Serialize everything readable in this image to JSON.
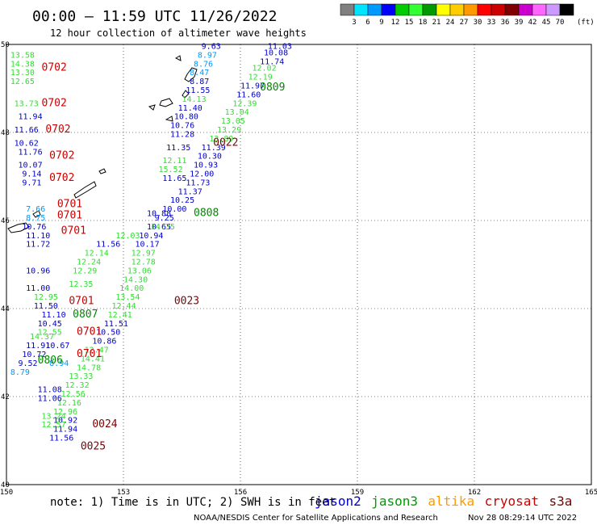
{
  "header": {
    "title": "00:00 – 11:59 UTC 11/26/2022",
    "subtitle": "12 hour collection of altimeter wave heights"
  },
  "color_scale": {
    "colors": [
      "#808080",
      "#00e5ff",
      "#0099ff",
      "#0000ff",
      "#00cc00",
      "#33ff33",
      "#009900",
      "#ffff00",
      "#ffcc00",
      "#ff9900",
      "#ff0000",
      "#cc0000",
      "#800000",
      "#cc00cc",
      "#ff66ff",
      "#cc99ff",
      "#000000"
    ],
    "labels": [
      "3",
      "6",
      "9",
      "12",
      "15",
      "18",
      "21",
      "24",
      "27",
      "30",
      "33",
      "36",
      "39",
      "42",
      "45",
      "70"
    ],
    "unit": "(ft)"
  },
  "footer": {
    "note": "note:  1) Time is in UTC; 2) SWH is in feet",
    "satellites": [
      {
        "name": "jason2",
        "color": "#0000cc"
      },
      {
        "name": "jason3",
        "color": "#009900"
      },
      {
        "name": "altika",
        "color": "#ff9900"
      },
      {
        "name": "cryosat",
        "color": "#cc0000"
      },
      {
        "name": "s3a",
        "color": "#800000"
      }
    ],
    "credit": "NOAA/NESDIS Center for Satellite Applications and Research",
    "timestamp": "Nov 28 08:29:14 UTC 2022"
  },
  "chart_data": {
    "type": "scatter",
    "xlim": [
      150,
      165
    ],
    "ylim": [
      40,
      50
    ],
    "x_ticks": [
      "150",
      "153",
      "156",
      "159",
      "162",
      "165"
    ],
    "y_ticks": [
      "40",
      "42",
      "44",
      "46",
      "48",
      "50"
    ],
    "grid": true,
    "points": [
      {
        "x": 156.7,
        "y": 49.9,
        "v": "11.03",
        "c": "#0000cc"
      },
      {
        "x": 156.6,
        "y": 49.75,
        "v": "10.08",
        "c": "#0000cc"
      },
      {
        "x": 156.5,
        "y": 49.55,
        "v": "11.74",
        "c": "#0000cc"
      },
      {
        "x": 156.3,
        "y": 49.4,
        "v": "12.02",
        "c": "#33dd33"
      },
      {
        "x": 156.2,
        "y": 49.2,
        "v": "12.19",
        "c": "#33dd33"
      },
      {
        "x": 156.0,
        "y": 49.0,
        "v": "11.97",
        "c": "#0000cc"
      },
      {
        "x": 155.9,
        "y": 48.8,
        "v": "11.60",
        "c": "#0000cc"
      },
      {
        "x": 155.8,
        "y": 48.6,
        "v": "12.39",
        "c": "#33dd33"
      },
      {
        "x": 155.6,
        "y": 48.4,
        "v": "13.04",
        "c": "#33dd33"
      },
      {
        "x": 155.5,
        "y": 48.2,
        "v": "13.05",
        "c": "#33dd33"
      },
      {
        "x": 155.4,
        "y": 48.0,
        "v": "13.29",
        "c": "#33dd33"
      },
      {
        "x": 155.2,
        "y": 47.8,
        "v": "13.89",
        "c": "#33dd33"
      },
      {
        "x": 155.0,
        "y": 47.6,
        "v": "11.39",
        "c": "#0000cc"
      },
      {
        "x": 154.9,
        "y": 47.4,
        "v": "10.30",
        "c": "#0000cc"
      },
      {
        "x": 154.8,
        "y": 47.2,
        "v": "10.93",
        "c": "#0000cc"
      },
      {
        "x": 154.7,
        "y": 47.0,
        "v": "12.00",
        "c": "#0000cc"
      },
      {
        "x": 154.6,
        "y": 46.8,
        "v": "11.73",
        "c": "#0000cc"
      },
      {
        "x": 154.4,
        "y": 46.6,
        "v": "11.37",
        "c": "#0000cc"
      },
      {
        "x": 154.2,
        "y": 46.4,
        "v": "10.25",
        "c": "#0000cc"
      },
      {
        "x": 154.0,
        "y": 46.2,
        "v": "10.00",
        "c": "#0000cc"
      },
      {
        "x": 153.8,
        "y": 46.0,
        "v": "9.25",
        "c": "#0000cc"
      },
      {
        "x": 153.6,
        "y": 45.8,
        "v": "10.65",
        "c": "#0000cc"
      },
      {
        "x": 153.4,
        "y": 45.6,
        "v": "10.94",
        "c": "#0000cc"
      },
      {
        "x": 153.3,
        "y": 45.4,
        "v": "10.17",
        "c": "#0000cc"
      },
      {
        "x": 153.2,
        "y": 45.2,
        "v": "12.97",
        "c": "#33dd33"
      },
      {
        "x": 153.2,
        "y": 45.0,
        "v": "12.78",
        "c": "#33dd33"
      },
      {
        "x": 153.1,
        "y": 44.8,
        "v": "13.06",
        "c": "#33dd33"
      },
      {
        "x": 153.0,
        "y": 44.6,
        "v": "14.30",
        "c": "#33dd33"
      },
      {
        "x": 152.9,
        "y": 44.4,
        "v": "14.00",
        "c": "#33dd33"
      },
      {
        "x": 152.8,
        "y": 44.2,
        "v": "13.54",
        "c": "#33dd33"
      },
      {
        "x": 152.7,
        "y": 44.0,
        "v": "12.44",
        "c": "#33dd33"
      },
      {
        "x": 152.6,
        "y": 43.8,
        "v": "12.41",
        "c": "#33dd33"
      },
      {
        "x": 152.5,
        "y": 43.6,
        "v": "11.51",
        "c": "#0000cc"
      },
      {
        "x": 152.3,
        "y": 43.4,
        "v": "10.50",
        "c": "#0000cc"
      },
      {
        "x": 152.2,
        "y": 43.2,
        "v": "10.86",
        "c": "#0000cc"
      },
      {
        "x": 152.0,
        "y": 43.0,
        "v": "12.47",
        "c": "#33dd33"
      },
      {
        "x": 151.9,
        "y": 42.8,
        "v": "14.41",
        "c": "#33dd33"
      },
      {
        "x": 151.8,
        "y": 42.6,
        "v": "14.78",
        "c": "#33dd33"
      },
      {
        "x": 151.6,
        "y": 42.4,
        "v": "13.33",
        "c": "#33dd33"
      },
      {
        "x": 151.5,
        "y": 42.2,
        "v": "12.32",
        "c": "#33dd33"
      },
      {
        "x": 151.4,
        "y": 42.0,
        "v": "12.56",
        "c": "#33dd33"
      },
      {
        "x": 151.3,
        "y": 41.8,
        "v": "12.16",
        "c": "#33dd33"
      },
      {
        "x": 151.2,
        "y": 41.6,
        "v": "12.96",
        "c": "#33dd33"
      },
      {
        "x": 151.2,
        "y": 41.4,
        "v": "10.92",
        "c": "#0000cc"
      },
      {
        "x": 151.2,
        "y": 41.2,
        "v": "11.94",
        "c": "#0000cc"
      },
      {
        "x": 151.1,
        "y": 41.0,
        "v": "11.56",
        "c": "#0000cc"
      },
      {
        "x": 155.0,
        "y": 49.9,
        "v": "9.63",
        "c": "#0000cc"
      },
      {
        "x": 154.9,
        "y": 49.7,
        "v": "8.97",
        "c": "#0099ff"
      },
      {
        "x": 154.8,
        "y": 49.5,
        "v": "8.76",
        "c": "#0099ff"
      },
      {
        "x": 154.7,
        "y": 49.3,
        "v": "8.47",
        "c": "#0099ff"
      },
      {
        "x": 154.7,
        "y": 49.1,
        "v": "8.87",
        "c": "#0000cc"
      },
      {
        "x": 154.6,
        "y": 48.9,
        "v": "11.55",
        "c": "#0000cc"
      },
      {
        "x": 154.5,
        "y": 48.7,
        "v": "14.13",
        "c": "#33dd33"
      },
      {
        "x": 154.4,
        "y": 48.5,
        "v": "11.40",
        "c": "#0000cc"
      },
      {
        "x": 154.3,
        "y": 48.3,
        "v": "10.80",
        "c": "#0000cc"
      },
      {
        "x": 154.2,
        "y": 48.1,
        "v": "10.76",
        "c": "#0000cc"
      },
      {
        "x": 154.2,
        "y": 47.9,
        "v": "11.28",
        "c": "#0000cc"
      },
      {
        "x": 154.1,
        "y": 47.6,
        "v": "11.35",
        "c": "#0000cc"
      },
      {
        "x": 154.0,
        "y": 47.3,
        "v": "12.11",
        "c": "#33dd33"
      },
      {
        "x": 153.9,
        "y": 47.1,
        "v": "15.52",
        "c": "#33dd33"
      },
      {
        "x": 154.0,
        "y": 46.9,
        "v": "11.65",
        "c": "#0000cc"
      },
      {
        "x": 153.6,
        "y": 46.1,
        "v": "10.88",
        "c": "#0000cc"
      },
      {
        "x": 153.7,
        "y": 45.8,
        "v": "14.35",
        "c": "#33dd33"
      },
      {
        "x": 152.8,
        "y": 45.6,
        "v": "12.03",
        "c": "#33dd33"
      },
      {
        "x": 152.3,
        "y": 45.4,
        "v": "11.56",
        "c": "#0000cc"
      },
      {
        "x": 152.0,
        "y": 45.2,
        "v": "12.14",
        "c": "#33dd33"
      },
      {
        "x": 151.8,
        "y": 45.0,
        "v": "12.24",
        "c": "#33dd33"
      },
      {
        "x": 151.7,
        "y": 44.8,
        "v": "12.29",
        "c": "#33dd33"
      },
      {
        "x": 151.6,
        "y": 44.5,
        "v": "12.35",
        "c": "#33dd33"
      },
      {
        "x": 150.7,
        "y": 44.2,
        "v": "12.95",
        "c": "#33dd33"
      },
      {
        "x": 150.7,
        "y": 44.0,
        "v": "11.50",
        "c": "#0000cc"
      },
      {
        "x": 150.9,
        "y": 43.8,
        "v": "11.10",
        "c": "#0000cc"
      },
      {
        "x": 150.8,
        "y": 43.6,
        "v": "10.45",
        "c": "#0000cc"
      },
      {
        "x": 150.5,
        "y": 43.1,
        "v": "11.91",
        "c": "#0000cc"
      },
      {
        "x": 151.0,
        "y": 43.1,
        "v": "10.67",
        "c": "#0000cc"
      },
      {
        "x": 150.4,
        "y": 42.9,
        "v": "10.72",
        "c": "#0000cc"
      },
      {
        "x": 150.3,
        "y": 42.7,
        "v": "9.52",
        "c": "#0000cc"
      },
      {
        "x": 150.1,
        "y": 42.5,
        "v": "8.79",
        "c": "#0099ff"
      },
      {
        "x": 151.1,
        "y": 42.7,
        "v": "8.94",
        "c": "#0099ff"
      },
      {
        "x": 150.8,
        "y": 42.1,
        "v": "11.08",
        "c": "#0000cc"
      },
      {
        "x": 150.8,
        "y": 41.9,
        "v": "11.06",
        "c": "#0000cc"
      },
      {
        "x": 150.9,
        "y": 41.5,
        "v": "13.24",
        "c": "#33dd33"
      },
      {
        "x": 150.9,
        "y": 41.3,
        "v": "12.57",
        "c": "#33dd33"
      },
      {
        "x": 150.8,
        "y": 43.4,
        "v": "12.55",
        "c": "#33dd33"
      },
      {
        "x": 150.6,
        "y": 43.3,
        "v": "14.37",
        "c": "#33dd33"
      },
      {
        "x": 150.1,
        "y": 49.7,
        "v": "13.58",
        "c": "#33dd33"
      },
      {
        "x": 150.1,
        "y": 49.5,
        "v": "14.38",
        "c": "#33dd33"
      },
      {
        "x": 150.1,
        "y": 49.3,
        "v": "13.30",
        "c": "#33dd33"
      },
      {
        "x": 150.1,
        "y": 49.1,
        "v": "12.65",
        "c": "#33dd33"
      },
      {
        "x": 150.2,
        "y": 48.6,
        "v": "13.73",
        "c": "#33dd33"
      },
      {
        "x": 150.3,
        "y": 48.3,
        "v": "11.94",
        "c": "#0000cc"
      },
      {
        "x": 150.2,
        "y": 48.0,
        "v": "11.66",
        "c": "#0000cc"
      },
      {
        "x": 150.2,
        "y": 47.7,
        "v": "10.62",
        "c": "#0000cc"
      },
      {
        "x": 150.3,
        "y": 47.5,
        "v": "11.76",
        "c": "#0000cc"
      },
      {
        "x": 150.3,
        "y": 47.2,
        "v": "10.07",
        "c": "#0000cc"
      },
      {
        "x": 150.4,
        "y": 47.0,
        "v": "9.14",
        "c": "#0000cc"
      },
      {
        "x": 150.4,
        "y": 46.8,
        "v": "9.71",
        "c": "#0000cc"
      },
      {
        "x": 150.5,
        "y": 46.2,
        "v": "7.66",
        "c": "#0099ff"
      },
      {
        "x": 150.5,
        "y": 46.0,
        "v": "8.75",
        "c": "#0099ff"
      },
      {
        "x": 150.4,
        "y": 45.8,
        "v": "10.76",
        "c": "#0000cc"
      },
      {
        "x": 150.5,
        "y": 45.6,
        "v": "11.10",
        "c": "#0000cc"
      },
      {
        "x": 150.5,
        "y": 45.4,
        "v": "11.72",
        "c": "#0000cc"
      },
      {
        "x": 150.5,
        "y": 44.8,
        "v": "10.96",
        "c": "#0000cc"
      },
      {
        "x": 150.5,
        "y": 44.4,
        "v": "11.00",
        "c": "#0000cc"
      }
    ],
    "tracks": [
      {
        "x": 150.9,
        "y": 49.4,
        "t": "0702",
        "c": "#cc0000"
      },
      {
        "x": 150.9,
        "y": 48.6,
        "t": "0702",
        "c": "#cc0000"
      },
      {
        "x": 151.0,
        "y": 48.0,
        "t": "0702",
        "c": "#cc0000"
      },
      {
        "x": 151.1,
        "y": 47.4,
        "t": "0702",
        "c": "#cc0000"
      },
      {
        "x": 151.1,
        "y": 46.9,
        "t": "0702",
        "c": "#cc0000"
      },
      {
        "x": 151.3,
        "y": 46.3,
        "t": "0701",
        "c": "#cc0000"
      },
      {
        "x": 151.3,
        "y": 46.05,
        "t": "0701",
        "c": "#cc0000"
      },
      {
        "x": 151.4,
        "y": 45.7,
        "t": "0701",
        "c": "#cc0000"
      },
      {
        "x": 151.6,
        "y": 44.1,
        "t": "0701",
        "c": "#cc0000"
      },
      {
        "x": 151.8,
        "y": 43.4,
        "t": "0701",
        "c": "#cc0000"
      },
      {
        "x": 151.8,
        "y": 42.9,
        "t": "0701",
        "c": "#cc0000"
      },
      {
        "x": 151.7,
        "y": 43.8,
        "t": "0807",
        "c": "#008800"
      },
      {
        "x": 150.8,
        "y": 42.75,
        "t": "0806",
        "c": "#008800"
      },
      {
        "x": 154.8,
        "y": 46.1,
        "t": "0808",
        "c": "#008800"
      },
      {
        "x": 156.5,
        "y": 48.95,
        "t": "0809",
        "c": "#008800"
      },
      {
        "x": 154.3,
        "y": 44.1,
        "t": "0023",
        "c": "#800000"
      },
      {
        "x": 155.3,
        "y": 47.7,
        "t": "0022",
        "c": "#800000"
      },
      {
        "x": 152.2,
        "y": 41.3,
        "t": "0024",
        "c": "#800000"
      },
      {
        "x": 151.9,
        "y": 40.8,
        "t": "0025",
        "c": "#800000"
      }
    ]
  }
}
